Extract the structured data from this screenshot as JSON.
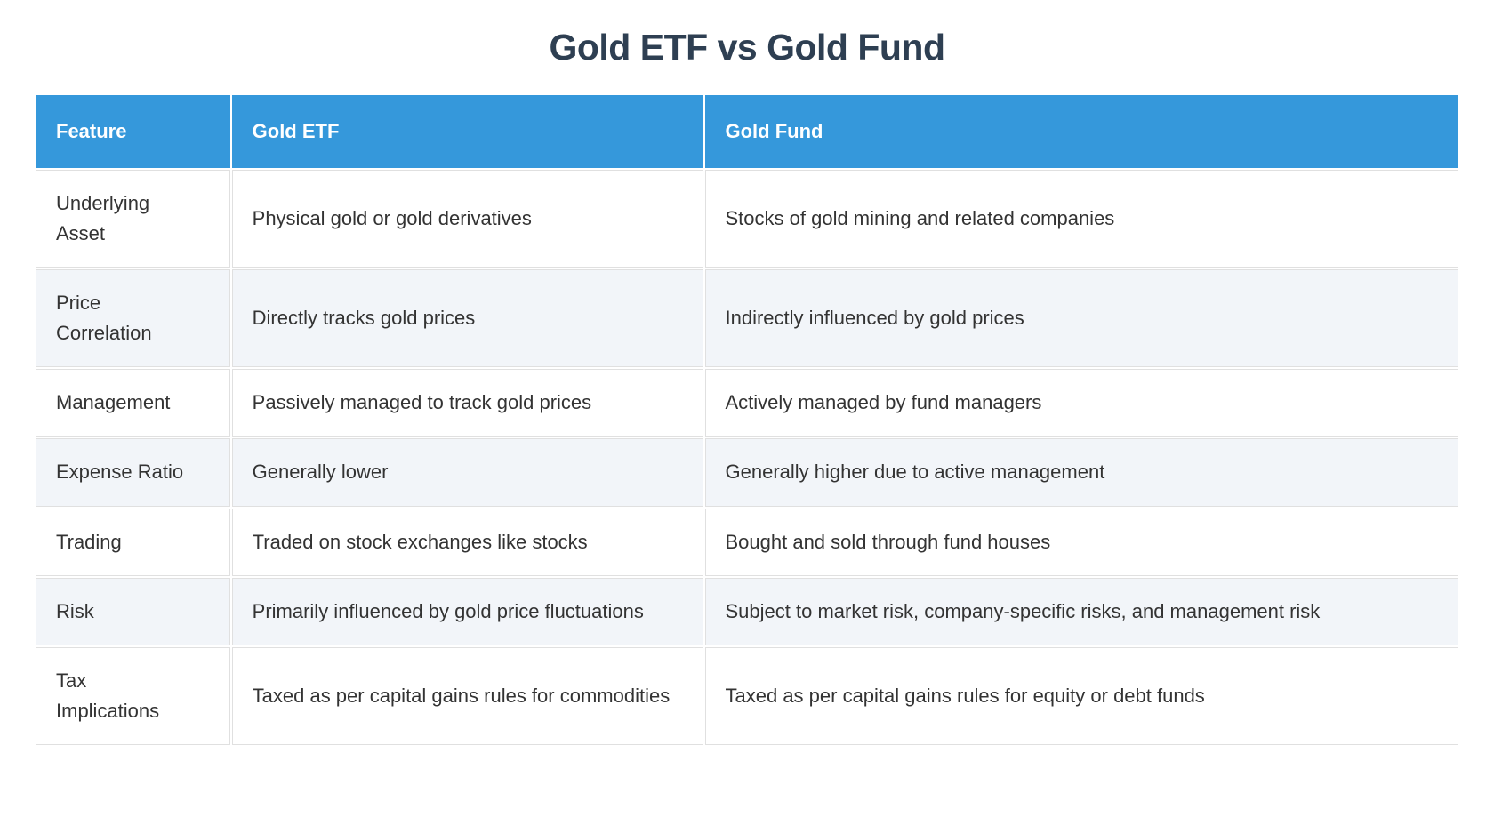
{
  "page": {
    "title": "Gold ETF vs Gold Fund"
  },
  "table": {
    "columns": [
      "Feature",
      "Gold ETF",
      "Gold Fund"
    ],
    "rows": [
      {
        "feature": "Underlying Asset",
        "gold_etf": "Physical gold or gold derivatives",
        "gold_fund": "Stocks of gold mining and related companies"
      },
      {
        "feature": "Price Correlation",
        "gold_etf": "Directly tracks gold prices",
        "gold_fund": "Indirectly influenced by gold prices"
      },
      {
        "feature": "Management",
        "gold_etf": "Passively managed to track gold prices",
        "gold_fund": "Actively managed by fund managers"
      },
      {
        "feature": "Expense Ratio",
        "gold_etf": "Generally lower",
        "gold_fund": "Generally higher due to active management"
      },
      {
        "feature": "Trading",
        "gold_etf": "Traded on stock exchanges like stocks",
        "gold_fund": "Bought and sold through fund houses"
      },
      {
        "feature": "Risk",
        "gold_etf": "Primarily influenced by gold price fluctuations",
        "gold_fund": "Subject to market risk, company-specific risks, and management risk"
      },
      {
        "feature": "Tax Implications",
        "gold_etf": "Taxed as per capital gains rules for commodities",
        "gold_fund": "Taxed as per capital gains rules for equity or debt funds"
      }
    ]
  },
  "colors": {
    "accent": "#3598db",
    "title_color": "#2e3f52",
    "text_color": "#333333",
    "row_alt": "#f2f5f9",
    "border_color": "#e0e0e0",
    "header_text": "#ffffff",
    "page_bg": "#ffffff"
  }
}
